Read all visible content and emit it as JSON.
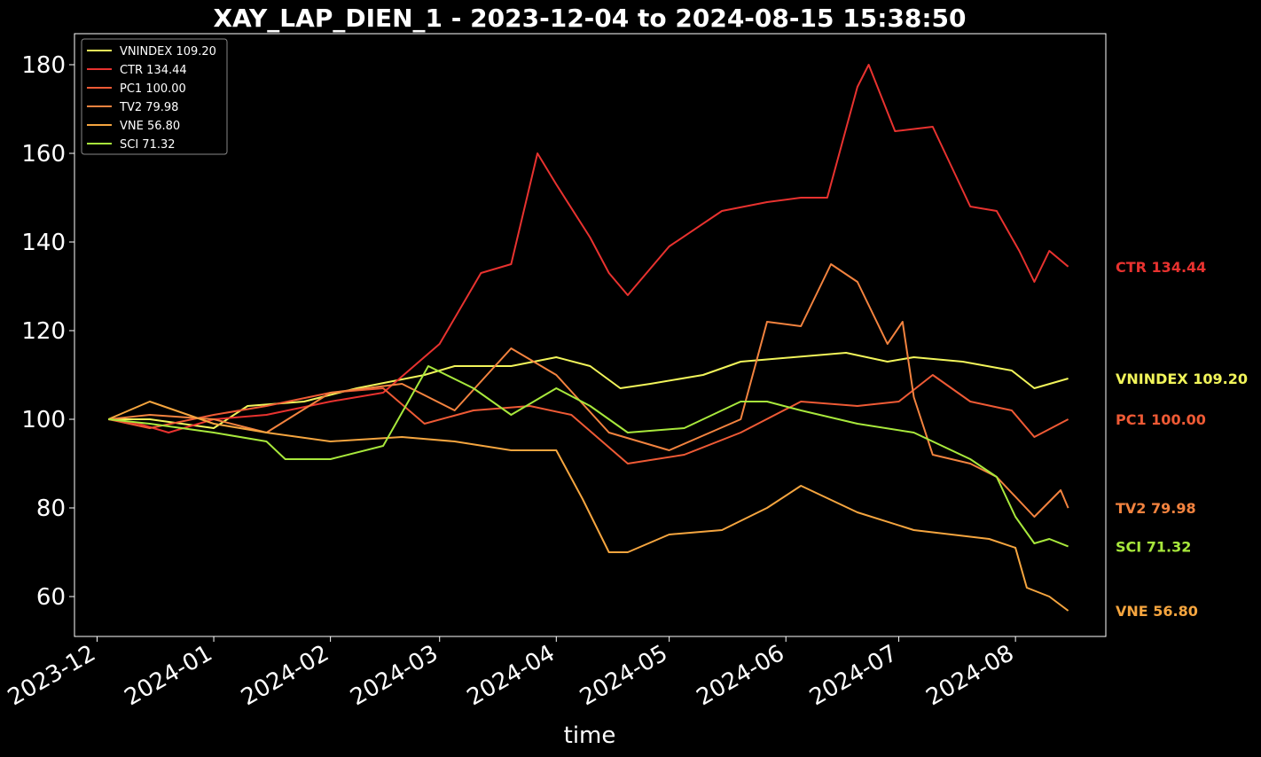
{
  "chart_data": {
    "type": "line",
    "title": "XAY_LAP_DIEN_1 - 2023-12-04 to 2024-08-15 15:38:50",
    "xlabel": "time",
    "ylabel": "",
    "xlim": [
      "2023-11-25",
      "2024-08-25"
    ],
    "ylim": [
      51,
      187
    ],
    "yticks": [
      60,
      80,
      100,
      120,
      140,
      160,
      180
    ],
    "xticks": [
      "2023-12",
      "2024-01",
      "2024-02",
      "2024-03",
      "2024-04",
      "2024-05",
      "2024-06",
      "2024-07",
      "2024-08"
    ],
    "grid": false,
    "legend_position": "top-left",
    "background": "#000000",
    "series": [
      {
        "name": "VNINDEX 109.20",
        "color": "#f2f55a",
        "points": [
          [
            "2023-12-04",
            100
          ],
          [
            "2023-12-15",
            100
          ],
          [
            "2024-01-01",
            98
          ],
          [
            "2024-01-10",
            103
          ],
          [
            "2024-01-25",
            104
          ],
          [
            "2024-02-08",
            107
          ],
          [
            "2024-02-26",
            110
          ],
          [
            "2024-03-05",
            112
          ],
          [
            "2024-03-20",
            112
          ],
          [
            "2024-04-01",
            114
          ],
          [
            "2024-04-10",
            112
          ],
          [
            "2024-04-18",
            107
          ],
          [
            "2024-04-26",
            108
          ],
          [
            "2024-05-10",
            110
          ],
          [
            "2024-05-20",
            113
          ],
          [
            "2024-06-03",
            114
          ],
          [
            "2024-06-17",
            115
          ],
          [
            "2024-06-28",
            113
          ],
          [
            "2024-07-05",
            114
          ],
          [
            "2024-07-18",
            113
          ],
          [
            "2024-07-31",
            111
          ],
          [
            "2024-08-06",
            107
          ],
          [
            "2024-08-15",
            109.2
          ]
        ]
      },
      {
        "name": "CTR 134.44",
        "color": "#e8322f",
        "points": [
          [
            "2023-12-04",
            100
          ],
          [
            "2023-12-12",
            99
          ],
          [
            "2023-12-20",
            97
          ],
          [
            "2024-01-01",
            100
          ],
          [
            "2024-01-15",
            101
          ],
          [
            "2024-02-01",
            104
          ],
          [
            "2024-02-15",
            106
          ],
          [
            "2024-03-01",
            117
          ],
          [
            "2024-03-12",
            133
          ],
          [
            "2024-03-20",
            135
          ],
          [
            "2024-03-27",
            160
          ],
          [
            "2024-04-01",
            153
          ],
          [
            "2024-04-10",
            141
          ],
          [
            "2024-04-15",
            133
          ],
          [
            "2024-04-20",
            128
          ],
          [
            "2024-05-01",
            139
          ],
          [
            "2024-05-15",
            147
          ],
          [
            "2024-05-27",
            149
          ],
          [
            "2024-06-05",
            150
          ],
          [
            "2024-06-12",
            150
          ],
          [
            "2024-06-20",
            175
          ],
          [
            "2024-06-23",
            180
          ],
          [
            "2024-06-30",
            165
          ],
          [
            "2024-07-10",
            166
          ],
          [
            "2024-07-20",
            148
          ],
          [
            "2024-07-27",
            147
          ],
          [
            "2024-08-02",
            138
          ],
          [
            "2024-08-06",
            131
          ],
          [
            "2024-08-10",
            138
          ],
          [
            "2024-08-15",
            134.44
          ]
        ]
      },
      {
        "name": "PC1 100.00",
        "color": "#ee5a35",
        "points": [
          [
            "2023-12-04",
            100
          ],
          [
            "2023-12-15",
            98
          ],
          [
            "2024-01-01",
            101
          ],
          [
            "2024-01-15",
            103
          ],
          [
            "2024-02-01",
            106
          ],
          [
            "2024-02-15",
            107
          ],
          [
            "2024-02-26",
            99
          ],
          [
            "2024-03-10",
            102
          ],
          [
            "2024-03-25",
            103
          ],
          [
            "2024-04-05",
            101
          ],
          [
            "2024-04-20",
            90
          ],
          [
            "2024-05-05",
            92
          ],
          [
            "2024-05-20",
            97
          ],
          [
            "2024-06-05",
            104
          ],
          [
            "2024-06-20",
            103
          ],
          [
            "2024-07-01",
            104
          ],
          [
            "2024-07-10",
            110
          ],
          [
            "2024-07-20",
            104
          ],
          [
            "2024-07-31",
            102
          ],
          [
            "2024-08-06",
            96
          ],
          [
            "2024-08-15",
            100
          ]
        ]
      },
      {
        "name": "TV2 79.98",
        "color": "#f3833f",
        "points": [
          [
            "2023-12-04",
            100
          ],
          [
            "2023-12-15",
            101
          ],
          [
            "2024-01-01",
            100
          ],
          [
            "2024-01-15",
            97
          ],
          [
            "2024-02-01",
            106
          ],
          [
            "2024-02-20",
            108
          ],
          [
            "2024-03-05",
            102
          ],
          [
            "2024-03-20",
            116
          ],
          [
            "2024-04-01",
            110
          ],
          [
            "2024-04-15",
            97
          ],
          [
            "2024-05-01",
            93
          ],
          [
            "2024-05-20",
            100
          ],
          [
            "2024-05-27",
            122
          ],
          [
            "2024-06-05",
            121
          ],
          [
            "2024-06-13",
            135
          ],
          [
            "2024-06-20",
            131
          ],
          [
            "2024-06-28",
            117
          ],
          [
            "2024-07-02",
            122
          ],
          [
            "2024-07-05",
            105
          ],
          [
            "2024-07-10",
            92
          ],
          [
            "2024-07-20",
            90
          ],
          [
            "2024-07-27",
            87
          ],
          [
            "2024-08-06",
            78
          ],
          [
            "2024-08-13",
            84
          ],
          [
            "2024-08-15",
            79.98
          ]
        ]
      },
      {
        "name": "VNE 56.80",
        "color": "#f5a53f",
        "points": [
          [
            "2023-12-04",
            100
          ],
          [
            "2023-12-15",
            104
          ],
          [
            "2024-01-01",
            99
          ],
          [
            "2024-01-15",
            97
          ],
          [
            "2024-02-01",
            95
          ],
          [
            "2024-02-20",
            96
          ],
          [
            "2024-03-05",
            95
          ],
          [
            "2024-03-20",
            93
          ],
          [
            "2024-04-01",
            93
          ],
          [
            "2024-04-08",
            82
          ],
          [
            "2024-04-15",
            70
          ],
          [
            "2024-04-20",
            70
          ],
          [
            "2024-05-01",
            74
          ],
          [
            "2024-05-15",
            75
          ],
          [
            "2024-05-27",
            80
          ],
          [
            "2024-06-05",
            85
          ],
          [
            "2024-06-20",
            79
          ],
          [
            "2024-07-05",
            75
          ],
          [
            "2024-07-25",
            73
          ],
          [
            "2024-08-01",
            71
          ],
          [
            "2024-08-04",
            62
          ],
          [
            "2024-08-10",
            60
          ],
          [
            "2024-08-15",
            56.8
          ]
        ]
      },
      {
        "name": "SCI 71.32",
        "color": "#a8e83c",
        "points": [
          [
            "2023-12-04",
            100
          ],
          [
            "2023-12-15",
            99
          ],
          [
            "2024-01-01",
            97
          ],
          [
            "2024-01-15",
            95
          ],
          [
            "2024-01-20",
            91
          ],
          [
            "2024-02-01",
            91
          ],
          [
            "2024-02-15",
            94
          ],
          [
            "2024-02-27",
            112
          ],
          [
            "2024-03-10",
            107
          ],
          [
            "2024-03-20",
            101
          ],
          [
            "2024-04-01",
            107
          ],
          [
            "2024-04-10",
            103
          ],
          [
            "2024-04-20",
            97
          ],
          [
            "2024-05-05",
            98
          ],
          [
            "2024-05-20",
            104
          ],
          [
            "2024-05-27",
            104
          ],
          [
            "2024-06-05",
            102
          ],
          [
            "2024-06-20",
            99
          ],
          [
            "2024-07-05",
            97
          ],
          [
            "2024-07-20",
            91
          ],
          [
            "2024-07-27",
            87
          ],
          [
            "2024-08-01",
            78
          ],
          [
            "2024-08-06",
            72
          ],
          [
            "2024-08-10",
            73
          ],
          [
            "2024-08-15",
            71.32
          ]
        ]
      }
    ]
  }
}
